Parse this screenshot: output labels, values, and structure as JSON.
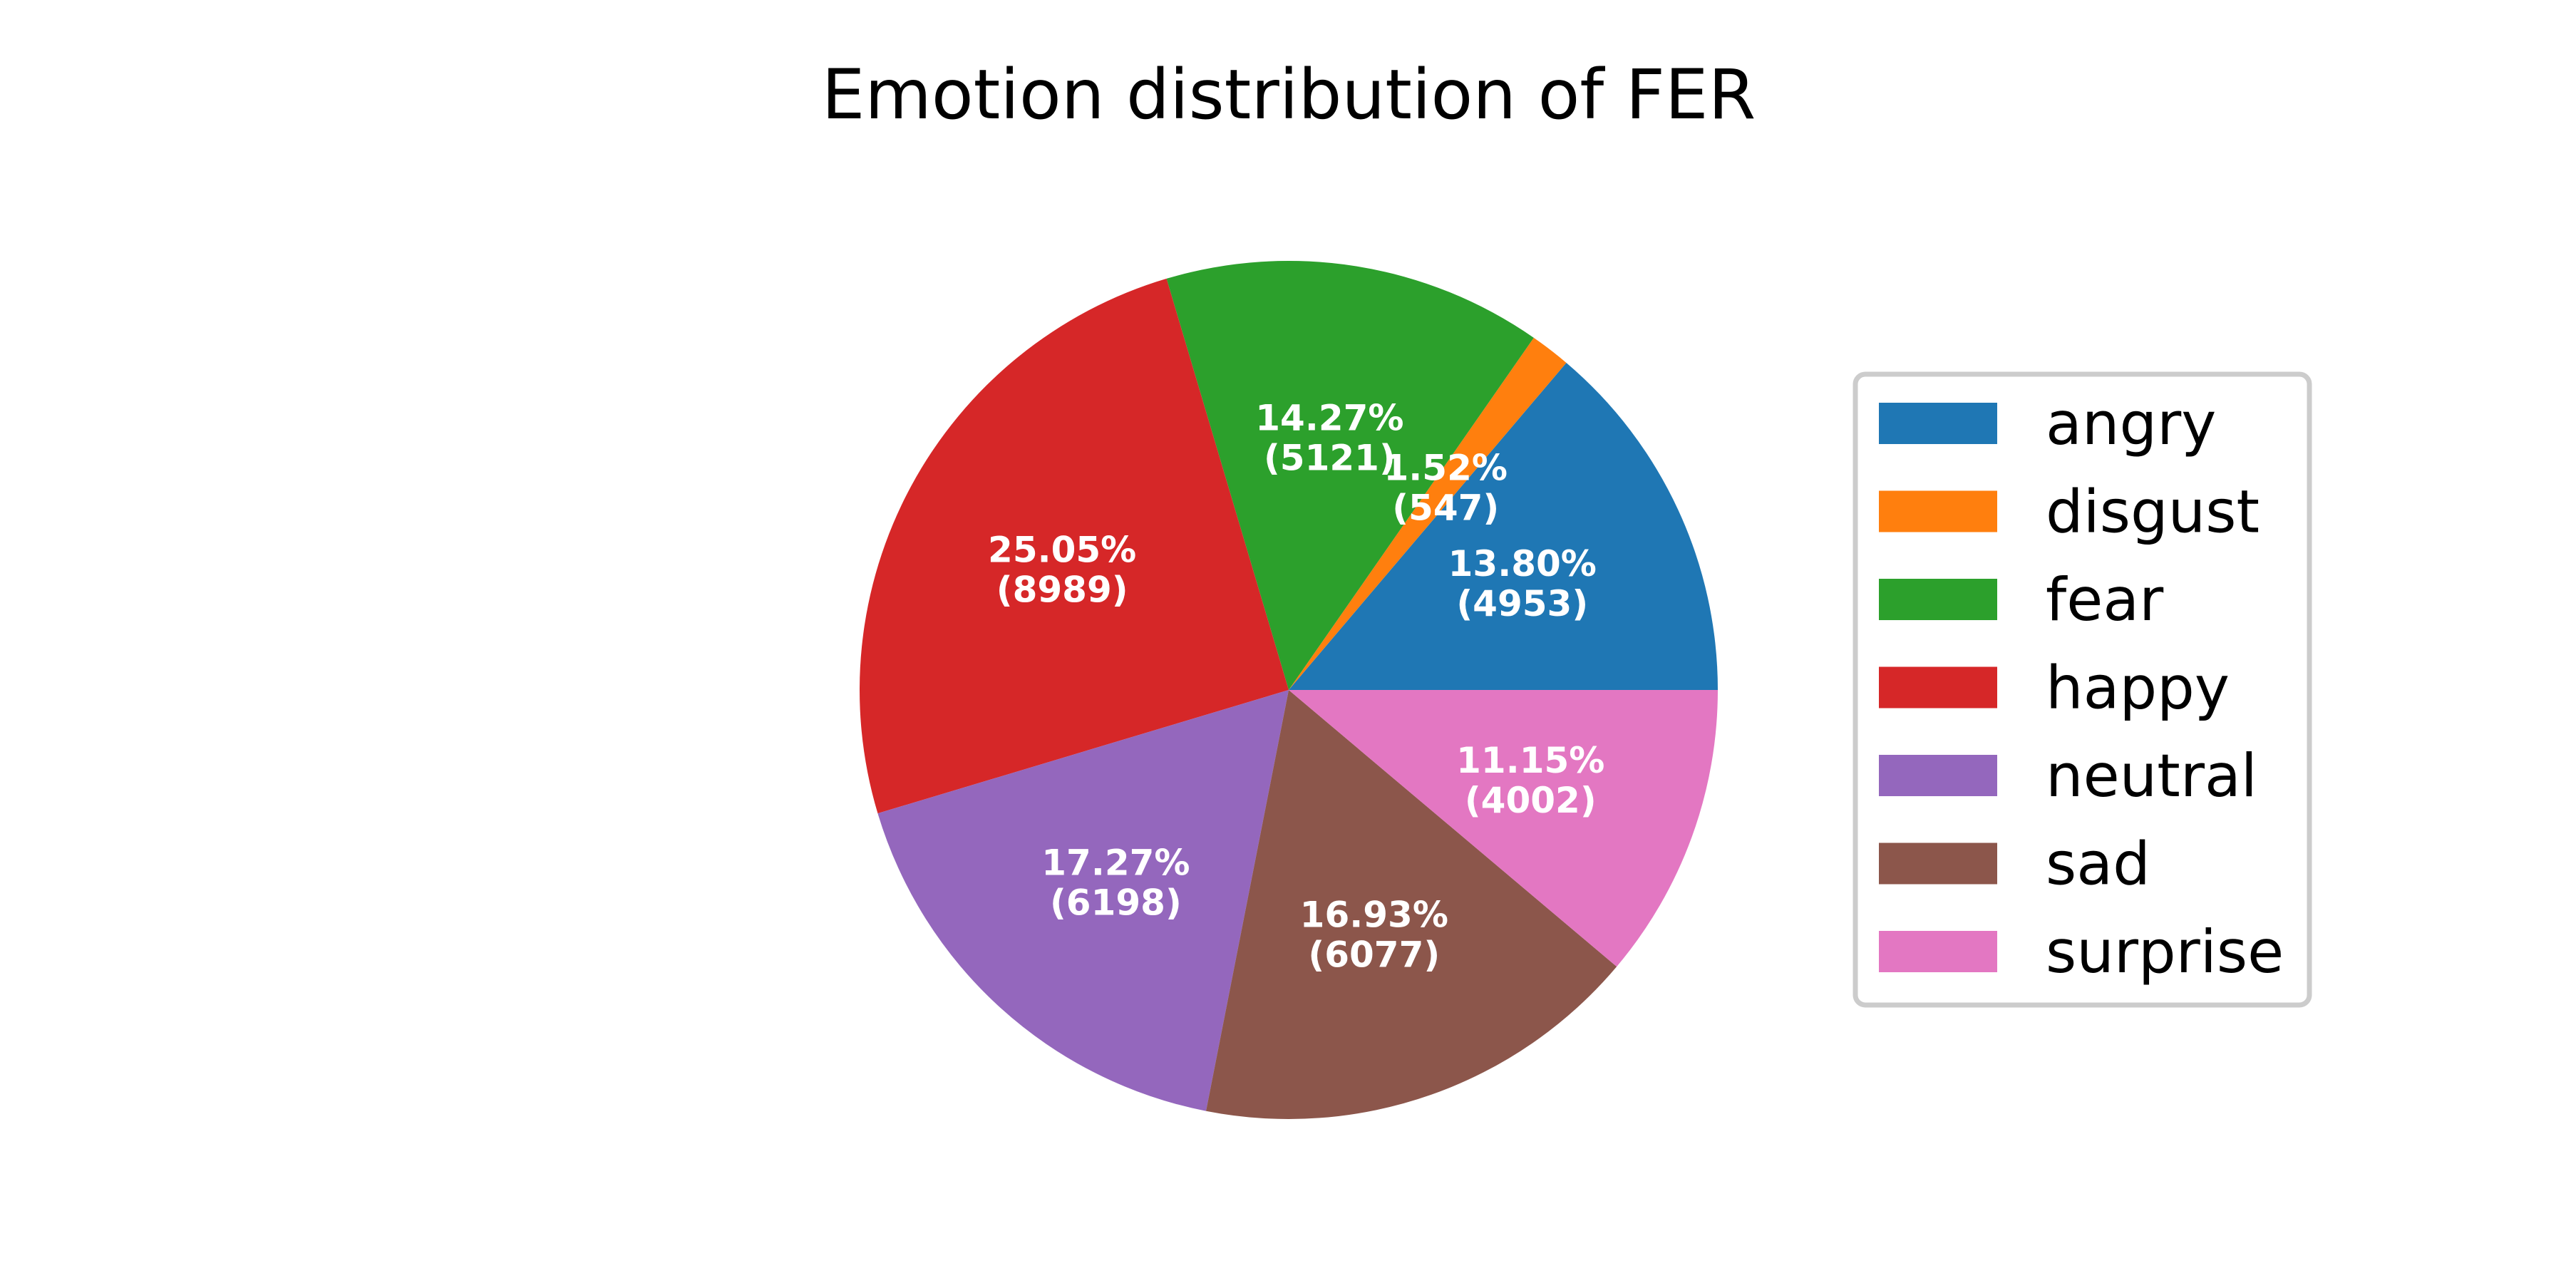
{
  "chart_data": {
    "type": "pie",
    "title": "Emotion distribution of FER",
    "start_angle_deg": 0,
    "direction": "counterclockwise",
    "slices": [
      {
        "label": "angry",
        "value": 4953,
        "percent_label": "13.80%",
        "count_label": "(4953)",
        "color": "#1f77b4"
      },
      {
        "label": "disgust",
        "value": 547,
        "percent_label": "1.52%",
        "count_label": "(547)",
        "color": "#ff7f0e"
      },
      {
        "label": "fear",
        "value": 5121,
        "percent_label": "14.27%",
        "count_label": "(5121)",
        "color": "#2ca02c"
      },
      {
        "label": "happy",
        "value": 8989,
        "percent_label": "25.05%",
        "count_label": "(8989)",
        "color": "#d62728"
      },
      {
        "label": "neutral",
        "value": 6198,
        "percent_label": "17.27%",
        "count_label": "(6198)",
        "color": "#9467bd"
      },
      {
        "label": "sad",
        "value": 6077,
        "percent_label": "16.93%",
        "count_label": "(6077)",
        "color": "#8c564b"
      },
      {
        "label": "surprise",
        "value": 4002,
        "percent_label": "11.15%",
        "count_label": "(4002)",
        "color": "#e377c2"
      }
    ],
    "legend": {
      "placement": "right",
      "entries": [
        "angry",
        "disgust",
        "fear",
        "happy",
        "neutral",
        "sad",
        "surprise"
      ]
    }
  }
}
